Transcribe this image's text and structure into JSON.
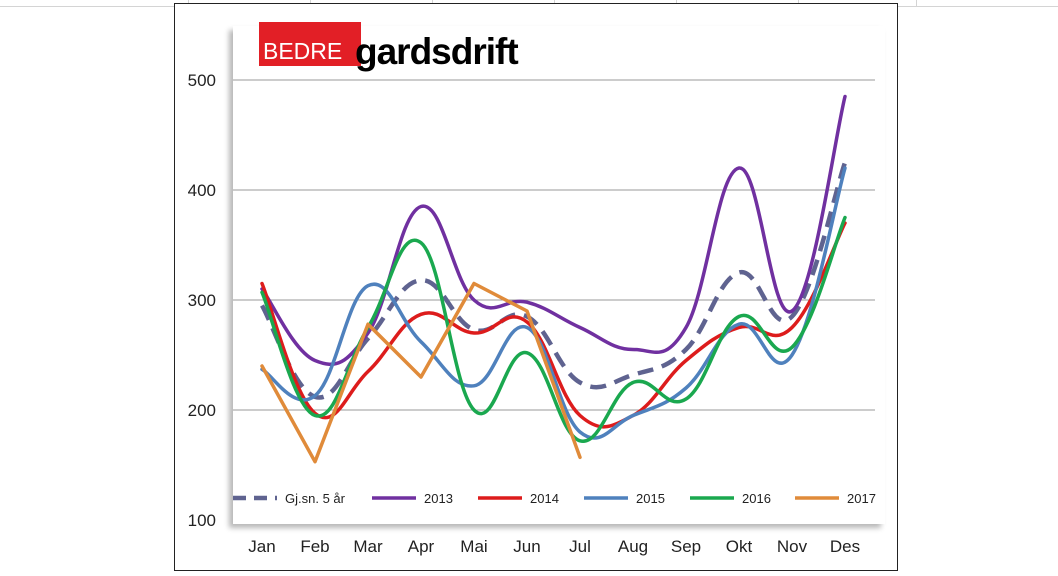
{
  "logo": {
    "part1": "BEDRE",
    "part2": "gardsdrift",
    "red": "#e21f26"
  },
  "chart_data": {
    "type": "line",
    "title": "",
    "xlabel": "",
    "ylabel": "",
    "categories": [
      "Jan",
      "Feb",
      "Mar",
      "Apr",
      "Mai",
      "Jun",
      "Jul",
      "Aug",
      "Sep",
      "Okt",
      "Nov",
      "Des"
    ],
    "ylim": [
      100,
      500
    ],
    "yticks": [
      100,
      200,
      300,
      400,
      500
    ],
    "grid": true,
    "legend_position": "bottom",
    "series": [
      {
        "name": "Gj.sn. 5 år",
        "color": "#5f6390",
        "dashed": true,
        "smooth": true,
        "values": [
          295,
          212,
          265,
          318,
          273,
          285,
          225,
          232,
          255,
          325,
          285,
          425
        ]
      },
      {
        "name": "2013",
        "color": "#7030a0",
        "dashed": false,
        "smooth": true,
        "values": [
          310,
          245,
          270,
          385,
          300,
          298,
          275,
          255,
          275,
          420,
          290,
          485
        ]
      },
      {
        "name": "2014",
        "color": "#dd1c1c",
        "dashed": false,
        "smooth": true,
        "values": [
          315,
          197,
          235,
          287,
          270,
          280,
          195,
          195,
          245,
          275,
          275,
          370
        ]
      },
      {
        "name": "2015",
        "color": "#4f81bd",
        "dashed": false,
        "smooth": true,
        "values": [
          237,
          213,
          313,
          262,
          222,
          275,
          180,
          195,
          220,
          278,
          250,
          420
        ]
      },
      {
        "name": "2016",
        "color": "#1aa84f",
        "dashed": false,
        "smooth": true,
        "values": [
          307,
          195,
          275,
          352,
          200,
          252,
          172,
          225,
          210,
          285,
          257,
          375
        ]
      },
      {
        "name": "2017",
        "color": "#e08b3a",
        "dashed": false,
        "smooth": false,
        "values": [
          240,
          153,
          278,
          230,
          315,
          290,
          157,
          null,
          null,
          null,
          null,
          null
        ]
      }
    ]
  }
}
